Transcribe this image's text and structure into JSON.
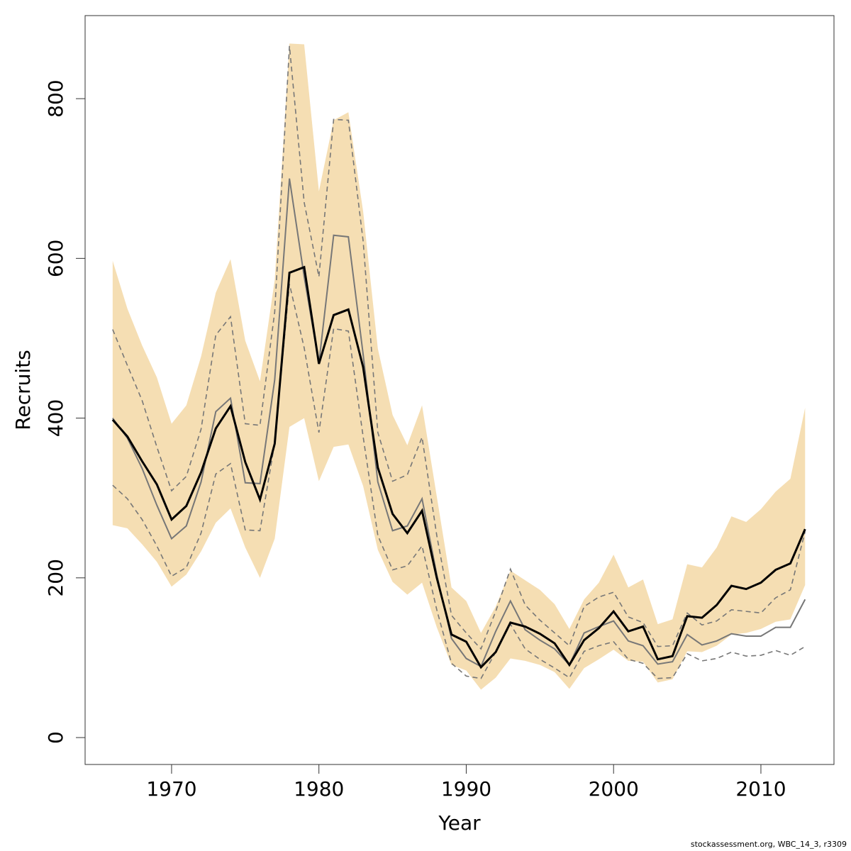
{
  "chart_data": {
    "type": "line",
    "x_label": "Year",
    "y_label": "Recruits",
    "footnote": "stockassessment.org, WBC_14_3, r3309",
    "x": [
      1966,
      1967,
      1968,
      1969,
      1970,
      1971,
      1972,
      1973,
      1974,
      1975,
      1976,
      1977,
      1978,
      1979,
      1980,
      1981,
      1982,
      1983,
      1984,
      1985,
      1986,
      1987,
      1988,
      1989,
      1990,
      1991,
      1992,
      1993,
      1994,
      1995,
      1996,
      1997,
      1998,
      1999,
      2000,
      2001,
      2002,
      2003,
      2004,
      2005,
      2006,
      2007,
      2008,
      2009,
      2010,
      2011,
      2012,
      2013
    ],
    "xlim": [
      1964.13,
      2014.96
    ],
    "xticks": [
      1970,
      1980,
      1990,
      2000,
      2010
    ],
    "ylim": [
      -33.7,
      904
    ],
    "yticks": [
      0,
      200,
      400,
      600,
      800
    ],
    "band": {
      "color": "#f5deb3",
      "upper": [
        597,
        537,
        491,
        451,
        393,
        416,
        477,
        557,
        599,
        497,
        446,
        573,
        869,
        868,
        684,
        773,
        783,
        659,
        487,
        404,
        366,
        416,
        302,
        188,
        171,
        131,
        164,
        209,
        197,
        185,
        167,
        136,
        173,
        194,
        229,
        188,
        198,
        142,
        148,
        217,
        213,
        238,
        277,
        270,
        286,
        308,
        324,
        413
      ],
      "lower": [
        266,
        262,
        242,
        220,
        189,
        204,
        233,
        269,
        287,
        238,
        200,
        249,
        389,
        400,
        321,
        364,
        367,
        315,
        235,
        195,
        179,
        194,
        138,
        91,
        84,
        60,
        75,
        99,
        96,
        91,
        82,
        61,
        87,
        98,
        110,
        96,
        95,
        69,
        73,
        108,
        107,
        115,
        129,
        131,
        136,
        145,
        148,
        191
      ]
    },
    "series": [
      {
        "color": "#777777",
        "style": "dashed",
        "values": [
          511,
          466,
          422,
          364,
          309,
          327,
          386,
          504,
          527,
          393,
          391,
          533,
          866,
          670,
          577,
          774,
          773,
          622,
          382,
          321,
          329,
          376,
          253,
          153,
          131,
          111,
          158,
          211,
          166,
          147,
          131,
          115,
          164,
          176,
          182,
          151,
          144,
          114,
          115,
          156,
          141,
          146,
          160,
          158,
          156,
          175,
          185,
          258
        ]
      },
      {
        "color": "#777777",
        "style": "dashed",
        "values": [
          316,
          299,
          273,
          240,
          202,
          213,
          256,
          330,
          343,
          260,
          259,
          369,
          568,
          488,
          382,
          512,
          509,
          377,
          253,
          210,
          215,
          240,
          160,
          93,
          77,
          74,
          107,
          142,
          111,
          98,
          87,
          75,
          108,
          115,
          120,
          98,
          93,
          74,
          75,
          105,
          96,
          99,
          107,
          102,
          103,
          109,
          103,
          114
        ]
      },
      {
        "color": "#777777",
        "style": "solid",
        "values": [
          400,
          375,
          337,
          291,
          249,
          265,
          320,
          408,
          425,
          319,
          318,
          448,
          700,
          577,
          469,
          629,
          627,
          480,
          320,
          259,
          265,
          299,
          204,
          124,
          99,
          89,
          133,
          171,
          135,
          122,
          111,
          91,
          131,
          139,
          146,
          121,
          115,
          92,
          95,
          129,
          116,
          121,
          130,
          127,
          127,
          138,
          138,
          173
        ]
      },
      {
        "color": "#000000",
        "style": "solid",
        "values": [
          398,
          377,
          346,
          317,
          273,
          290,
          332,
          387,
          415,
          345,
          298,
          368,
          582,
          589,
          468,
          529,
          536,
          464,
          338,
          280,
          256,
          284,
          200,
          129,
          120,
          88,
          107,
          144,
          139,
          130,
          118,
          91,
          122,
          137,
          158,
          133,
          139,
          98,
          102,
          152,
          150,
          166,
          190,
          186,
          194,
          210,
          218,
          261
        ]
      }
    ]
  }
}
